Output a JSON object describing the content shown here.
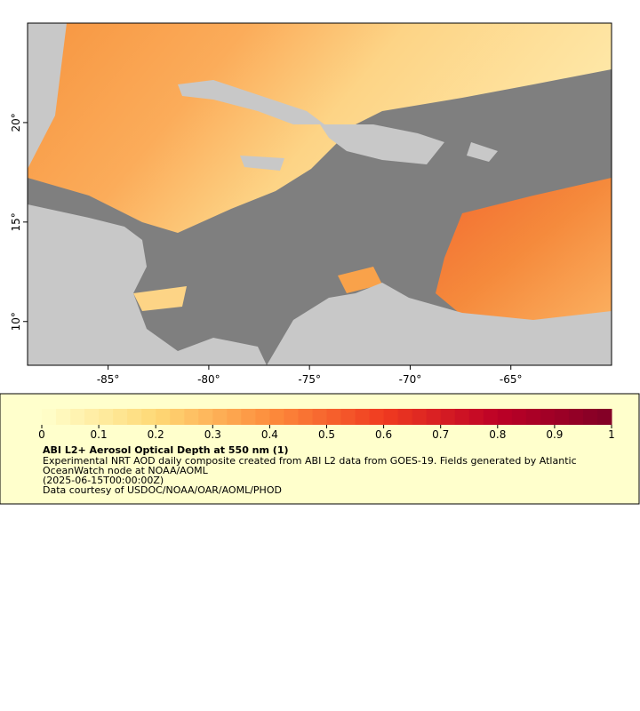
{
  "map": {
    "xlim": [
      -89,
      -60
    ],
    "ylim": [
      7.8,
      25
    ],
    "xticks": [
      {
        "value": -85,
        "label": "-85°"
      },
      {
        "value": -80,
        "label": "-80°"
      },
      {
        "value": -75,
        "label": "-75°"
      },
      {
        "value": -70,
        "label": "-70°"
      },
      {
        "value": -65,
        "label": "-65°"
      }
    ],
    "yticks": [
      {
        "value": 10,
        "label": "10°"
      },
      {
        "value": 15,
        "label": "15°"
      },
      {
        "value": 20,
        "label": "20°"
      }
    ]
  },
  "colorbar": {
    "lim": [
      0,
      1
    ],
    "ticks": [
      0,
      0.1,
      0.2,
      0.3,
      0.4,
      0.5,
      0.6,
      0.7,
      0.8,
      0.9,
      1
    ]
  },
  "legend": {
    "title": "ABI L2+ Aerosol Optical Depth at 550 nm (1)",
    "description": "Experimental NRT AOD daily composite created from ABI L2 data from GOES-19. Fields generated by Atlantic OceanWatch node at NOAA/AOML",
    "time": "(2025-06-15T00:00:00Z)",
    "credit": "Data courtesy of USDOC/NOAA/OAR/AOML/PHOD"
  }
}
